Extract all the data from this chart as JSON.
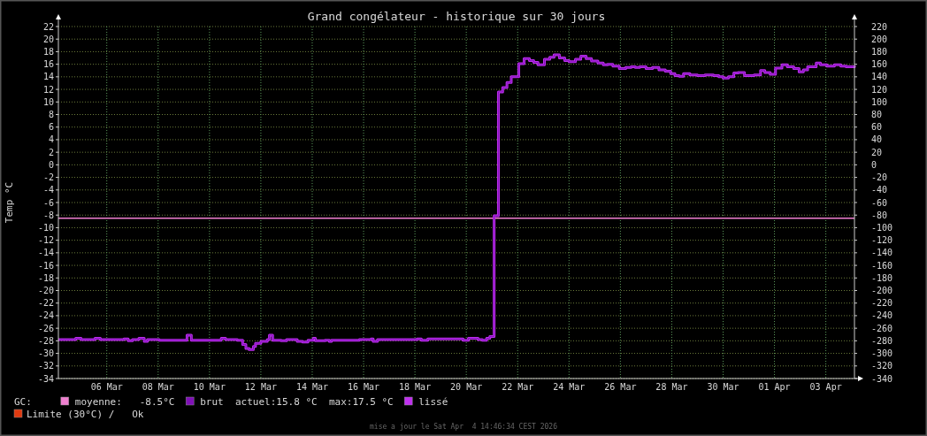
{
  "chart_data": {
    "type": "step",
    "title": "Grand congélateur - historique sur 30 jours",
    "ylabel": "Temp °C",
    "x": [
      "2026-03-04T14:46",
      "2026-03-05T07:00",
      "2026-03-05T12:00",
      "2026-03-06T01:00",
      "2026-03-06T06:00",
      "2026-03-07T04:00",
      "2026-03-07T08:00",
      "2026-03-07T12:00",
      "2026-03-07T18:00",
      "2026-03-07T23:00",
      "2026-03-08T02:00",
      "2026-03-08T13:00",
      "2026-03-09T14:00",
      "2026-03-09T15:00",
      "2026-03-09T19:00",
      "2026-03-10T23:00",
      "2026-03-11T03:00",
      "2026-03-11T14:00",
      "2026-03-11T19:00",
      "2026-03-11T22:00",
      "2026-03-12T01:00",
      "2026-03-12T05:00",
      "2026-03-12T07:00",
      "2026-03-12T12:00",
      "2026-03-12T18:00",
      "2026-03-12T20:00",
      "2026-03-12T23:00",
      "2026-03-13T07:00",
      "2026-03-13T12:00",
      "2026-03-13T22:00",
      "2026-03-14T03:00",
      "2026-03-14T08:00",
      "2026-03-14T13:00",
      "2026-03-14T15:00",
      "2026-03-15T00:00",
      "2026-03-15T04:00",
      "2026-03-15T06:00",
      "2026-03-16T06:00",
      "2026-03-16T08:00",
      "2026-03-16T19:00",
      "2026-03-16T21:00",
      "2026-03-17T01:00",
      "2026-03-18T14:00",
      "2026-03-18T18:00",
      "2026-03-19T00:00",
      "2026-03-20T06:00",
      "2026-03-20T09:00",
      "2026-03-20T14:00",
      "2026-03-20T23:00",
      "2026-03-21T03:00",
      "2026-03-21T07:00",
      "2026-03-21T10:00",
      "2026-03-21T14:00",
      "2026-03-21T18:00",
      "2026-03-21T22:00",
      "2026-03-22T02:00",
      "2026-03-22T06:00",
      "2026-03-22T13:00",
      "2026-03-22T18:00",
      "2026-03-22T23:00",
      "2026-03-23T03:00",
      "2026-03-23T07:00",
      "2026-03-23T13:00",
      "2026-03-23T18:00",
      "2026-03-23T22:00",
      "2026-03-24T03:00",
      "2026-03-24T08:00",
      "2026-03-24T12:00",
      "2026-03-24T18:00",
      "2026-03-24T23:00",
      "2026-03-25T04:00",
      "2026-03-25T09:00",
      "2026-03-25T15:00",
      "2026-03-25T20:00",
      "2026-03-26T00:00",
      "2026-03-26T05:00",
      "2026-03-26T11:00",
      "2026-03-26T17:00",
      "2026-03-26T22:00",
      "2026-03-27T02:00",
      "2026-03-27T06:00",
      "2026-03-27T12:00",
      "2026-03-27T18:00",
      "2026-03-28T00:00",
      "2026-03-28T06:00",
      "2026-03-28T11:00",
      "2026-03-28T15:00",
      "2026-03-28T19:00",
      "2026-03-28T23:00",
      "2026-03-29T05:00",
      "2026-03-29T12:00",
      "2026-03-29T19:00",
      "2026-03-30T03:00",
      "2026-03-30T08:00",
      "2026-03-30T12:00",
      "2026-03-30T17:00",
      "2026-03-30T22:00",
      "2026-03-31T02:00",
      "2026-03-31T08:00",
      "2026-03-31T17:00",
      "2026-03-31T23:00",
      "2026-04-01T03:00",
      "2026-04-01T08:00",
      "2026-04-01T13:00",
      "2026-04-01T19:00",
      "2026-04-02T00:00",
      "2026-04-02T06:00",
      "2026-04-02T11:00",
      "2026-04-02T15:00",
      "2026-04-02T19:00",
      "2026-04-03T03:00",
      "2026-04-03T07:00",
      "2026-04-03T13:00",
      "2026-04-03T20:00",
      "2026-04-04T02:00",
      "2026-04-04T07:00",
      "2026-04-04T14:46"
    ],
    "series": [
      {
        "name": "lissé",
        "color": "#c030f0",
        "values": [
          -27.8,
          -27.6,
          -27.8,
          -27.6,
          -27.8,
          -27.7,
          -28.0,
          -27.8,
          -27.6,
          -28.1,
          -27.8,
          -27.9,
          -27.9,
          -27.1,
          -27.9,
          -27.6,
          -27.8,
          -27.9,
          -28.6,
          -29.2,
          -29.4,
          -28.9,
          -28.4,
          -28.1,
          -27.8,
          -27.1,
          -27.9,
          -28.0,
          -27.8,
          -28.1,
          -28.2,
          -27.9,
          -27.6,
          -28.0,
          -27.9,
          -28.1,
          -27.9,
          -27.9,
          -27.8,
          -27.7,
          -28.1,
          -27.8,
          -27.7,
          -27.9,
          -27.7,
          -27.7,
          -27.9,
          -27.6,
          -27.8,
          -27.9,
          -27.6,
          -27.3,
          -8.1,
          11.6,
          12.3,
          13.1,
          14.0,
          16.1,
          16.9,
          16.6,
          16.3,
          15.9,
          16.8,
          17.1,
          17.5,
          17.0,
          16.6,
          16.4,
          16.8,
          17.3,
          16.9,
          16.5,
          16.2,
          15.9,
          16.0,
          15.7,
          15.3,
          15.5,
          15.6,
          15.5,
          15.6,
          15.3,
          15.5,
          15.1,
          14.9,
          14.5,
          14.2,
          14.1,
          14.5,
          14.3,
          14.2,
          14.3,
          14.2,
          14.0,
          13.8,
          14.0,
          14.6,
          14.7,
          14.2,
          14.3,
          15.0,
          14.7,
          14.4,
          15.4,
          15.9,
          15.6,
          15.3,
          14.8,
          15.1,
          15.6,
          16.2,
          15.9,
          15.7,
          15.9,
          15.7,
          15.6,
          15.8
        ]
      },
      {
        "name": "brut",
        "color": "#8010b8",
        "values": [
          -27.8,
          -27.6,
          -27.8,
          -27.6,
          -27.8,
          -27.7,
          -28.0,
          -27.8,
          -27.6,
          -28.1,
          -27.8,
          -27.9,
          -27.9,
          -27.1,
          -27.9,
          -27.6,
          -27.8,
          -27.9,
          -28.6,
          -29.2,
          -29.4,
          -28.9,
          -28.4,
          -28.1,
          -27.8,
          -27.1,
          -27.9,
          -28.0,
          -27.8,
          -28.1,
          -28.2,
          -27.9,
          -27.6,
          -28.0,
          -27.9,
          -28.1,
          -27.9,
          -27.9,
          -27.8,
          -27.7,
          -28.1,
          -27.8,
          -27.7,
          -27.9,
          -27.7,
          -27.7,
          -27.9,
          -27.6,
          -27.8,
          -27.9,
          -27.6,
          -27.3,
          -8.1,
          11.6,
          12.3,
          13.1,
          14.0,
          16.1,
          16.9,
          16.6,
          16.3,
          15.9,
          16.8,
          17.1,
          17.5,
          17.0,
          16.6,
          16.4,
          16.8,
          17.3,
          16.9,
          16.5,
          16.2,
          15.9,
          16.0,
          15.7,
          15.3,
          15.5,
          15.6,
          15.5,
          15.6,
          15.3,
          15.5,
          15.1,
          14.9,
          14.5,
          14.2,
          14.1,
          14.5,
          14.3,
          14.2,
          14.3,
          14.2,
          14.0,
          13.8,
          14.0,
          14.6,
          14.7,
          14.2,
          14.3,
          15.0,
          14.7,
          14.4,
          15.4,
          15.9,
          15.6,
          15.3,
          14.8,
          15.1,
          15.6,
          16.2,
          15.9,
          15.7,
          15.9,
          15.7,
          15.6,
          15.8
        ]
      }
    ],
    "xlim": [
      "2026-03-04T14:46",
      "2026-04-04T14:46"
    ],
    "xticks": [
      {
        "value": "2026-03-06T12:00",
        "label": "06 Mar"
      },
      {
        "value": "2026-03-08T12:00",
        "label": "08 Mar"
      },
      {
        "value": "2026-03-10T12:00",
        "label": "10 Mar"
      },
      {
        "value": "2026-03-12T12:00",
        "label": "12 Mar"
      },
      {
        "value": "2026-03-14T12:00",
        "label": "14 Mar"
      },
      {
        "value": "2026-03-16T12:00",
        "label": "16 Mar"
      },
      {
        "value": "2026-03-18T12:00",
        "label": "18 Mar"
      },
      {
        "value": "2026-03-20T12:00",
        "label": "20 Mar"
      },
      {
        "value": "2026-03-22T12:00",
        "label": "22 Mar"
      },
      {
        "value": "2026-03-24T12:00",
        "label": "24 Mar"
      },
      {
        "value": "2026-03-26T12:00",
        "label": "26 Mar"
      },
      {
        "value": "2026-03-28T12:00",
        "label": "28 Mar"
      },
      {
        "value": "2026-03-30T12:00",
        "label": "30 Mar"
      },
      {
        "value": "2026-04-01T12:00",
        "label": "01 Apr"
      },
      {
        "value": "2026-04-03T12:00",
        "label": "03 Apr"
      }
    ],
    "ylim": [
      -34,
      22
    ],
    "yticks": [
      -34,
      -32,
      -30,
      -28,
      -26,
      -24,
      -22,
      -20,
      -18,
      -16,
      -14,
      -12,
      -10,
      -8,
      -6,
      -4,
      -2,
      0,
      2,
      4,
      6,
      8,
      10,
      12,
      14,
      16,
      18,
      20,
      22
    ],
    "y2lim": [
      -340,
      220
    ],
    "y2ticks": [
      -340,
      -320,
      -300,
      -280,
      -260,
      -240,
      -220,
      -200,
      -180,
      -160,
      -140,
      -120,
      -100,
      -80,
      -60,
      -40,
      -20,
      0,
      20,
      40,
      60,
      80,
      100,
      120,
      140,
      160,
      180,
      200,
      220
    ],
    "ref_lines": [
      {
        "axis": "y",
        "value": -8.5,
        "label": "moyenne:   -8.5°C",
        "color": "#f080d0"
      }
    ],
    "annotations": [
      "GC:",
      "actuel:15.8 °C  max:17.5 °C",
      "Limite (30°C) /   Ok",
      "mise a jour le Sat Apr  4 14:46:34 CEST 2026"
    ],
    "grid": true,
    "legend": "bottom"
  }
}
